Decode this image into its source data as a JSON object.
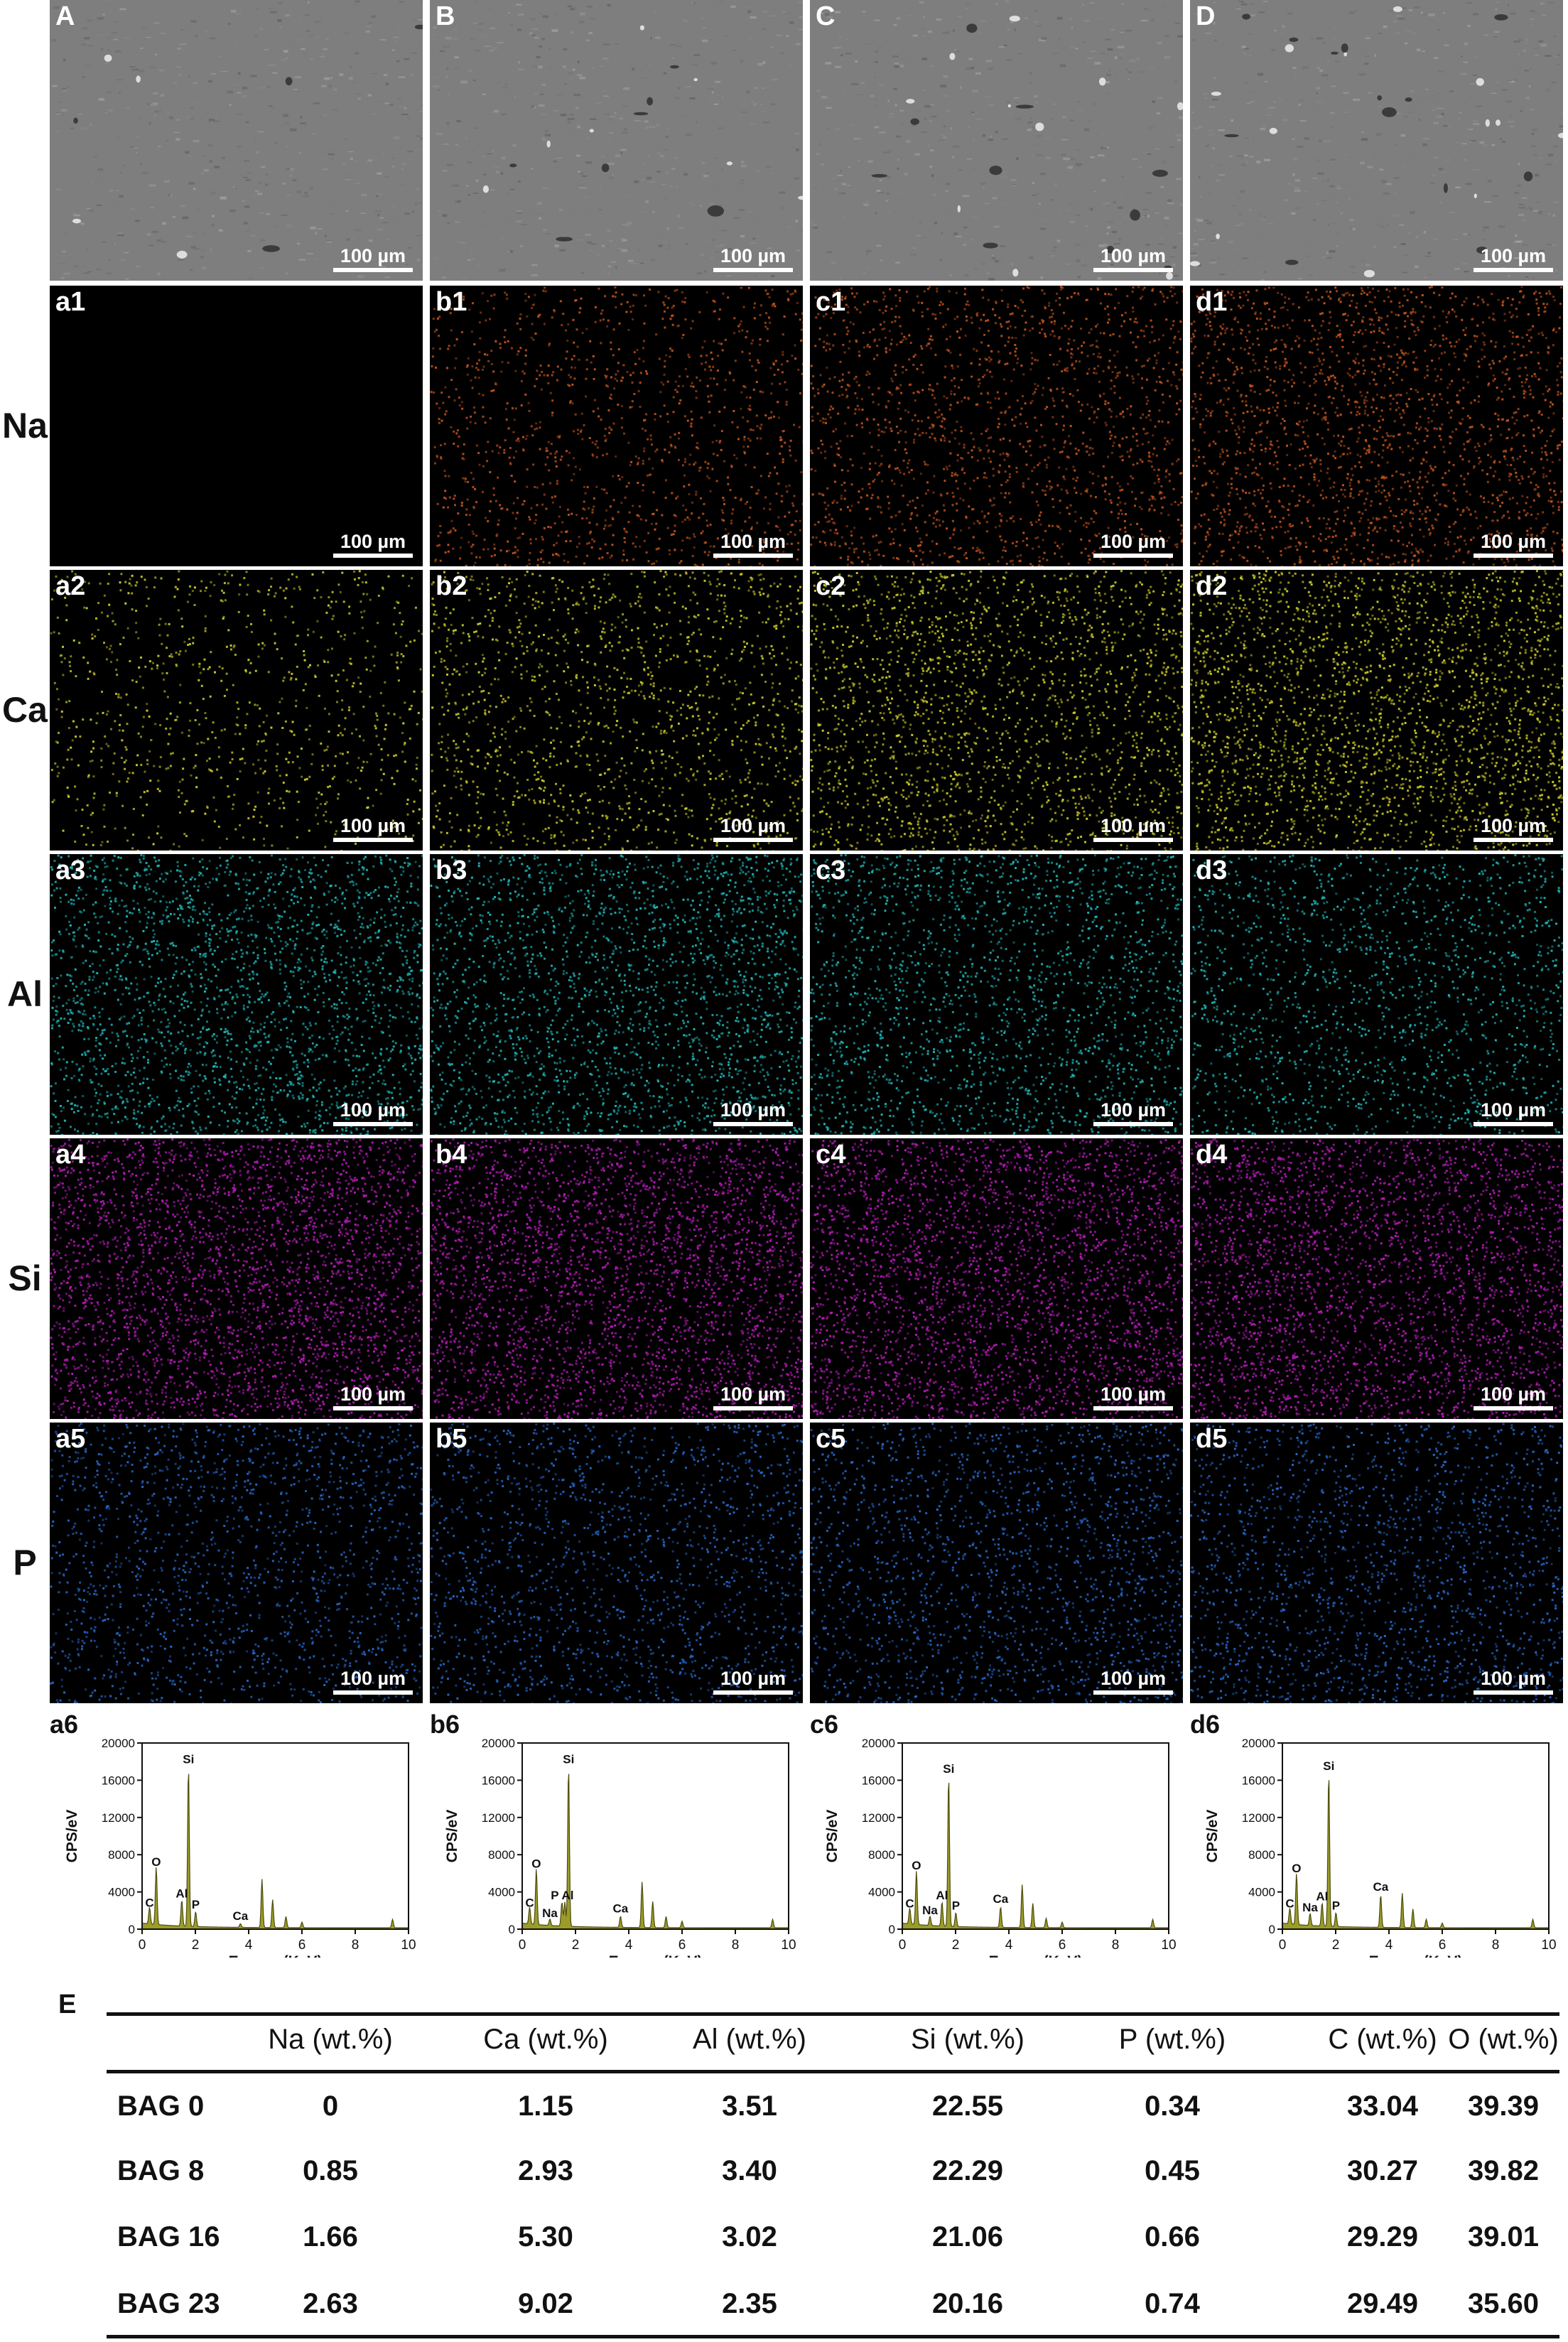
{
  "figure": {
    "columns": [
      "A",
      "B",
      "C",
      "D"
    ],
    "column_labels_lower": [
      "a",
      "b",
      "c",
      "d"
    ],
    "scale_bar": "100 µm",
    "rows": [
      {
        "element": "",
        "suffix": "",
        "color": "#8a8a8a",
        "kind": "sem"
      },
      {
        "element": "Na",
        "suffix": "1",
        "color": "#c0521b",
        "kind": "map",
        "intensity": [
          0,
          0.35,
          0.45,
          0.55
        ]
      },
      {
        "element": "Ca",
        "suffix": "2",
        "color": "#c8c828",
        "kind": "map",
        "intensity": [
          0.25,
          0.4,
          0.55,
          0.7
        ]
      },
      {
        "element": "Al",
        "suffix": "3",
        "color": "#1fb3b3",
        "kind": "map",
        "intensity": [
          0.65,
          0.62,
          0.55,
          0.45
        ]
      },
      {
        "element": "Si",
        "suffix": "4",
        "color": "#b11bb3",
        "kind": "map",
        "intensity": [
          0.9,
          0.88,
          0.86,
          0.84
        ]
      },
      {
        "element": "P",
        "suffix": "5",
        "color": "#2566c8",
        "kind": "map",
        "intensity": [
          0.45,
          0.45,
          0.5,
          0.5
        ]
      }
    ],
    "spectra_suffix": "6",
    "spectra_ylabel": "CPS/eV",
    "spectra_xlabel": "Energy (KeV)"
  },
  "chart_data": [
    {
      "type": "area",
      "panel": "a6",
      "xlabel": "Energy (KeV)",
      "ylabel": "CPS/eV",
      "xlim": [
        0,
        10
      ],
      "ylim": [
        0,
        20000
      ],
      "xticks": [
        "0",
        "2",
        "4",
        "6",
        "8",
        "10"
      ],
      "yticks": [
        "0",
        "4000",
        "8000",
        "12000",
        "16000",
        "20000"
      ],
      "peaks": [
        {
          "label": "C",
          "x": 0.28,
          "y": 1800
        },
        {
          "label": "O",
          "x": 0.53,
          "y": 6200
        },
        {
          "label": "Al",
          "x": 1.49,
          "y": 2800
        },
        {
          "label": "Si",
          "x": 1.74,
          "y": 17200
        },
        {
          "label": "P",
          "x": 2.01,
          "y": 1600
        },
        {
          "label": "Ca",
          "x": 3.69,
          "y": 400
        }
      ],
      "unlabeled_peaks": [
        {
          "x": 4.5,
          "y": 5200
        },
        {
          "x": 4.9,
          "y": 3000
        },
        {
          "x": 5.4,
          "y": 1200
        },
        {
          "x": 6.0,
          "y": 600
        },
        {
          "x": 9.4,
          "y": 900
        }
      ]
    },
    {
      "type": "area",
      "panel": "b6",
      "xlabel": "Energy (KeV)",
      "ylabel": "CPS/eV",
      "xlim": [
        0,
        10
      ],
      "ylim": [
        0,
        20000
      ],
      "xticks": [
        "0",
        "2",
        "4",
        "6",
        "8",
        "10"
      ],
      "yticks": [
        "0",
        "4000",
        "8000",
        "12000",
        "16000",
        "20000"
      ],
      "peaks": [
        {
          "label": "C",
          "x": 0.28,
          "y": 1800
        },
        {
          "label": "O",
          "x": 0.53,
          "y": 6000
        },
        {
          "label": "Na",
          "x": 1.04,
          "y": 700
        },
        {
          "label": "P",
          "x": 1.49,
          "y": 2600
        },
        {
          "label": "Al",
          "x": 1.6,
          "y": 2600
        },
        {
          "label": "Si",
          "x": 1.74,
          "y": 17200
        },
        {
          "label": "Ca",
          "x": 3.69,
          "y": 1200
        }
      ],
      "unlabeled_peaks": [
        {
          "x": 4.5,
          "y": 4900
        },
        {
          "x": 4.9,
          "y": 2800
        },
        {
          "x": 5.4,
          "y": 1200
        },
        {
          "x": 6.0,
          "y": 700
        },
        {
          "x": 9.4,
          "y": 900
        }
      ]
    },
    {
      "type": "area",
      "panel": "c6",
      "xlabel": "Energy (KeV)",
      "ylabel": "CPS/eV",
      "xlim": [
        0,
        10
      ],
      "ylim": [
        0,
        20000
      ],
      "xticks": [
        "0",
        "2",
        "4",
        "6",
        "8",
        "10"
      ],
      "yticks": [
        "0",
        "4000",
        "8000",
        "12000",
        "16000",
        "20000"
      ],
      "peaks": [
        {
          "label": "C",
          "x": 0.28,
          "y": 1700
        },
        {
          "label": "O",
          "x": 0.53,
          "y": 5800
        },
        {
          "label": "Na",
          "x": 1.04,
          "y": 1000
        },
        {
          "label": "Al",
          "x": 1.49,
          "y": 2600
        },
        {
          "label": "Si",
          "x": 1.74,
          "y": 16200
        },
        {
          "label": "P",
          "x": 2.01,
          "y": 1500
        },
        {
          "label": "Ca",
          "x": 3.69,
          "y": 2200
        }
      ],
      "unlabeled_peaks": [
        {
          "x": 4.5,
          "y": 4600
        },
        {
          "x": 4.9,
          "y": 2600
        },
        {
          "x": 5.4,
          "y": 1000
        },
        {
          "x": 6.0,
          "y": 600
        },
        {
          "x": 9.4,
          "y": 900
        }
      ]
    },
    {
      "type": "area",
      "panel": "d6",
      "xlabel": "Energy (KeV)",
      "ylabel": "CPS/eV",
      "xlim": [
        0,
        10
      ],
      "ylim": [
        0,
        20000
      ],
      "xticks": [
        "0",
        "2",
        "4",
        "6",
        "8",
        "10"
      ],
      "yticks": [
        "0",
        "4000",
        "8000",
        "12000",
        "16000",
        "20000"
      ],
      "peaks": [
        {
          "label": "C",
          "x": 0.28,
          "y": 1700
        },
        {
          "label": "O",
          "x": 0.53,
          "y": 5500
        },
        {
          "label": "Na",
          "x": 1.04,
          "y": 1300
        },
        {
          "label": "Al",
          "x": 1.49,
          "y": 2500
        },
        {
          "label": "Si",
          "x": 1.74,
          "y": 16500
        },
        {
          "label": "P",
          "x": 2.01,
          "y": 1500
        },
        {
          "label": "Ca",
          "x": 3.69,
          "y": 3500
        }
      ],
      "unlabeled_peaks": [
        {
          "x": 4.5,
          "y": 3700
        },
        {
          "x": 4.9,
          "y": 2000
        },
        {
          "x": 5.4,
          "y": 900
        },
        {
          "x": 6.0,
          "y": 500
        },
        {
          "x": 9.4,
          "y": 900
        }
      ]
    },
    {
      "type": "table",
      "panel": "E",
      "columns": [
        "",
        "Na (wt.%)",
        "Ca (wt.%)",
        "Al (wt.%)",
        "Si (wt.%)",
        "P (wt.%)",
        "C (wt.%)",
        "O (wt.%)"
      ],
      "rows": [
        [
          "BAG 0",
          "0",
          "1.15",
          "3.51",
          "22.55",
          "0.34",
          "33.04",
          "39.39"
        ],
        [
          "BAG 8",
          "0.85",
          "2.93",
          "3.40",
          "22.29",
          "0.45",
          "30.27",
          "39.82"
        ],
        [
          "BAG 16",
          "1.66",
          "5.30",
          "3.02",
          "21.06",
          "0.66",
          "29.29",
          "39.01"
        ],
        [
          "BAG 23",
          "2.63",
          "9.02",
          "2.35",
          "20.16",
          "0.74",
          "29.49",
          "35.60"
        ]
      ]
    }
  ],
  "table_label": "E"
}
